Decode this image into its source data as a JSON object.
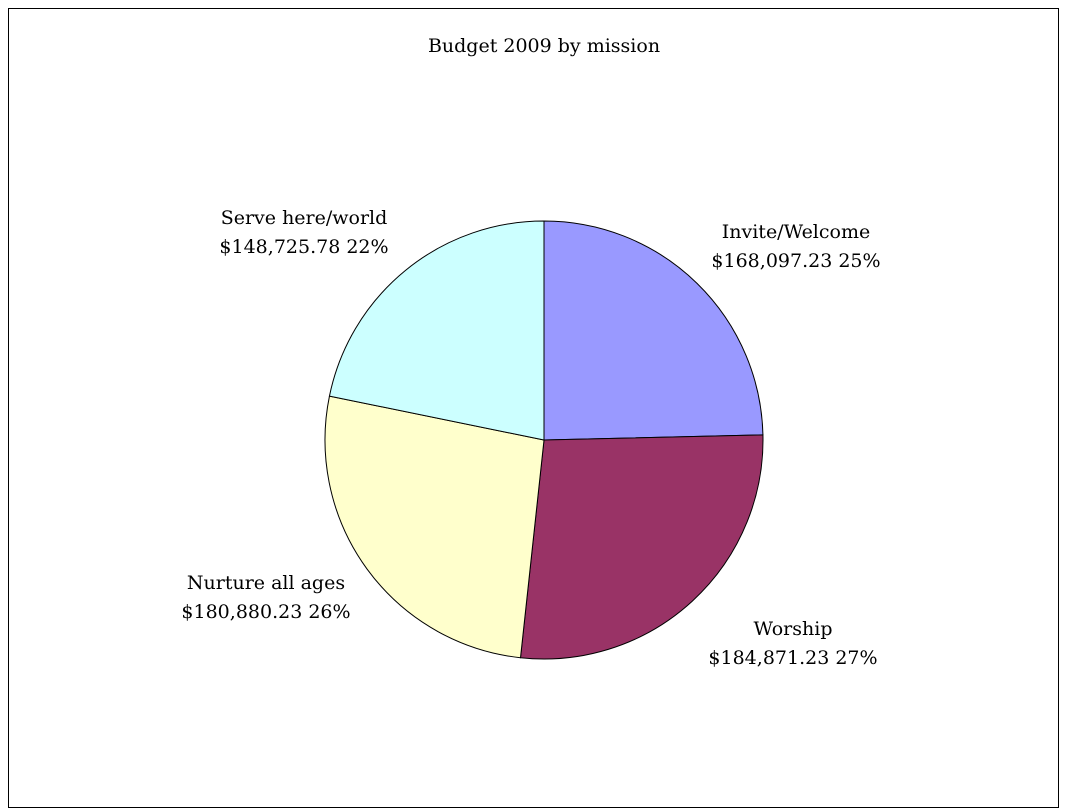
{
  "chart_data": {
    "type": "pie",
    "title": "Budget 2009 by mission",
    "slices": [
      {
        "label": "Invite/Welcome",
        "value_text": "$168,097.23",
        "percent_text": "25%",
        "value": 168097.23,
        "color": "#9999FF"
      },
      {
        "label": "Worship",
        "value_text": "$184,871.23",
        "percent_text": "27%",
        "value": 184871.23,
        "color": "#993366"
      },
      {
        "label": "Nurture all ages",
        "value_text": "$180,880.23",
        "percent_text": "26%",
        "value": 180880.23,
        "color": "#FFFFCC"
      },
      {
        "label": "Serve here/world",
        "value_text": "$148,725.78",
        "percent_text": "22%",
        "value": 148725.78,
        "color": "#CCFFFF"
      }
    ],
    "legend": "none"
  }
}
